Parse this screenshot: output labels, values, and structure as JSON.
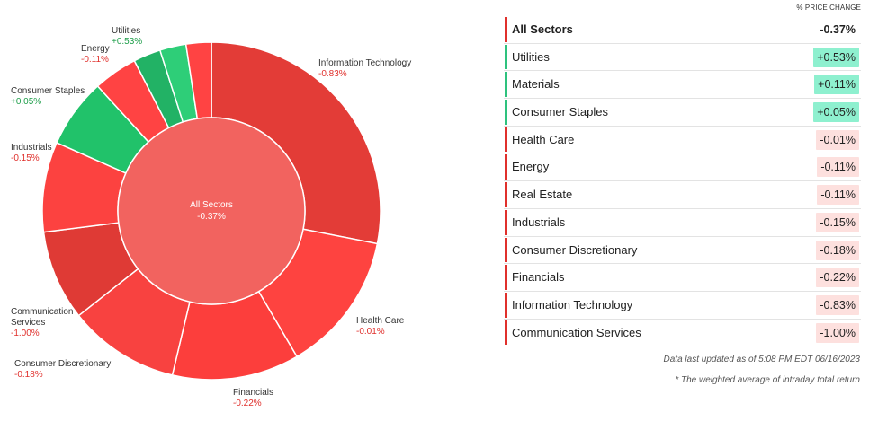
{
  "chart_data": {
    "type": "donut",
    "center": {
      "name": "All Sectors",
      "change": "-0.37%"
    },
    "sectors": [
      {
        "name": "Information Technology",
        "change": "-0.83%",
        "weight": 28.0,
        "color": "#e33c37",
        "trend": "neg"
      },
      {
        "name": "Health Care",
        "change": "-0.01%",
        "weight": 13.4,
        "color": "#fe4340",
        "trend": "neg"
      },
      {
        "name": "Financials",
        "change": "-0.22%",
        "weight": 12.1,
        "color": "#fc3e3c",
        "trend": "neg"
      },
      {
        "name": "Consumer Discretionary",
        "change": "-0.18%",
        "weight": 10.6,
        "color": "#f84240",
        "trend": "neg"
      },
      {
        "name": "Communication Services",
        "change": "-1.00%",
        "weight": 8.6,
        "color": "#df3a35",
        "trend": "neg"
      },
      {
        "name": "Industrials",
        "change": "-0.15%",
        "weight": 8.6,
        "color": "#fc4240",
        "trend": "neg"
      },
      {
        "name": "Consumer Staples",
        "change": "+0.05%",
        "weight": 6.6,
        "color": "#21c26a",
        "trend": "pos"
      },
      {
        "name": "Energy",
        "change": "-0.11%",
        "weight": 4.2,
        "color": "#ff4343",
        "trend": "neg"
      },
      {
        "name": "Utilities",
        "change": "+0.53%",
        "weight": 2.6,
        "color": "#22b265",
        "trend": "pos"
      },
      {
        "name": "Materials",
        "change": "",
        "weight": 2.5,
        "color": "#2ece78",
        "trend": "pos"
      },
      {
        "name": "Real Estate",
        "change": "",
        "weight": 2.4,
        "color": "#ff4343",
        "trend": "neg"
      }
    ]
  },
  "table": {
    "header": "% PRICE CHANGE",
    "rows": [
      {
        "name": "All Sectors",
        "change": "-0.37%",
        "trend": "neg",
        "total": true
      },
      {
        "name": "Utilities",
        "change": "+0.53%",
        "trend": "pos"
      },
      {
        "name": "Materials",
        "change": "+0.11%",
        "trend": "pos"
      },
      {
        "name": "Consumer Staples",
        "change": "+0.05%",
        "trend": "pos"
      },
      {
        "name": "Health Care",
        "change": "-0.01%",
        "trend": "neg"
      },
      {
        "name": "Energy",
        "change": "-0.11%",
        "trend": "neg"
      },
      {
        "name": "Real Estate",
        "change": "-0.11%",
        "trend": "neg"
      },
      {
        "name": "Industrials",
        "change": "-0.15%",
        "trend": "neg"
      },
      {
        "name": "Consumer Discretionary",
        "change": "-0.18%",
        "trend": "neg"
      },
      {
        "name": "Financials",
        "change": "-0.22%",
        "trend": "neg"
      },
      {
        "name": "Information Technology",
        "change": "-0.83%",
        "trend": "neg"
      },
      {
        "name": "Communication Services",
        "change": "-1.00%",
        "trend": "neg"
      }
    ]
  },
  "footnotes": {
    "updated": "Data last updated as of 5:08 PM EDT 06/16/2023",
    "note": "* The weighted average of intraday total return"
  },
  "colors": {
    "center_fill": "#f2635f",
    "positive_text": "#1e9e4a",
    "negative_text": "#e0302c"
  }
}
